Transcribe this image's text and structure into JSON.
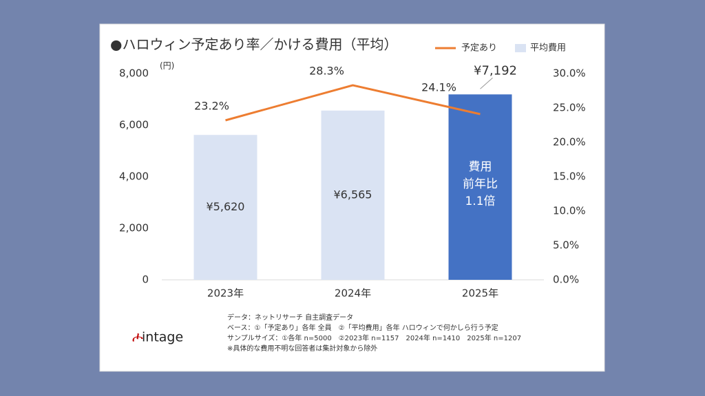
{
  "chart_data": {
    "type": "bar",
    "title": "●ハロウィン予定あり率／かける費用（平均）",
    "y_unit": "(円)",
    "categories": [
      "2023年",
      "2024年",
      "2025年"
    ],
    "series": [
      {
        "name": "平均費用",
        "type": "bar",
        "color": "#dae3f3",
        "colors": [
          "#dae3f3",
          "#dae3f3",
          "#4472c4"
        ],
        "values": [
          5620,
          6565,
          7192
        ],
        "value_labels": [
          "¥5,620",
          "¥6,565",
          "¥7,192"
        ]
      },
      {
        "name": "予定あり",
        "type": "line",
        "axis": "y2",
        "color": "#ed7d31",
        "values": [
          23.2,
          28.3,
          24.1
        ],
        "value_labels": [
          "23.2%",
          "28.3%",
          "24.1%"
        ]
      }
    ],
    "ylim": [
      0,
      8000
    ],
    "yticks": [
      0,
      {
        "value": 2000,
        "label": "2,000"
      },
      {
        "value": 4000,
        "label": "4,000"
      },
      {
        "value": 6000,
        "label": "6,000"
      },
      {
        "value": 8000,
        "label": "8,000"
      }
    ],
    "y2lim": [
      0,
      30
    ],
    "y2ticks": [
      {
        "value": 0,
        "label": "0.0%"
      },
      {
        "value": 5,
        "label": "5.0%"
      },
      {
        "value": 10,
        "label": "10.0%"
      },
      {
        "value": 15,
        "label": "15.0%"
      },
      {
        "value": 20,
        "label": "20.0%"
      },
      {
        "value": 25,
        "label": "25.0%"
      },
      {
        "value": 30,
        "label": "30.0%"
      }
    ],
    "annotation": [
      "費用",
      "前年比",
      "1.1倍"
    ],
    "notes": [
      "データ：ネットリサーチ 自主調査データ",
      "ベース：①「予定あり」各年 全員　②「平均費用」各年 ハロウィンで何かしら行う予定",
      "サンプルサイズ：①各年 n=5000　②2023年 n=1157　2024年 n=1410　2025年 n=1207",
      "※具体的な費用不明な回答者は集計対象から除外"
    ],
    "logo": "intage"
  }
}
